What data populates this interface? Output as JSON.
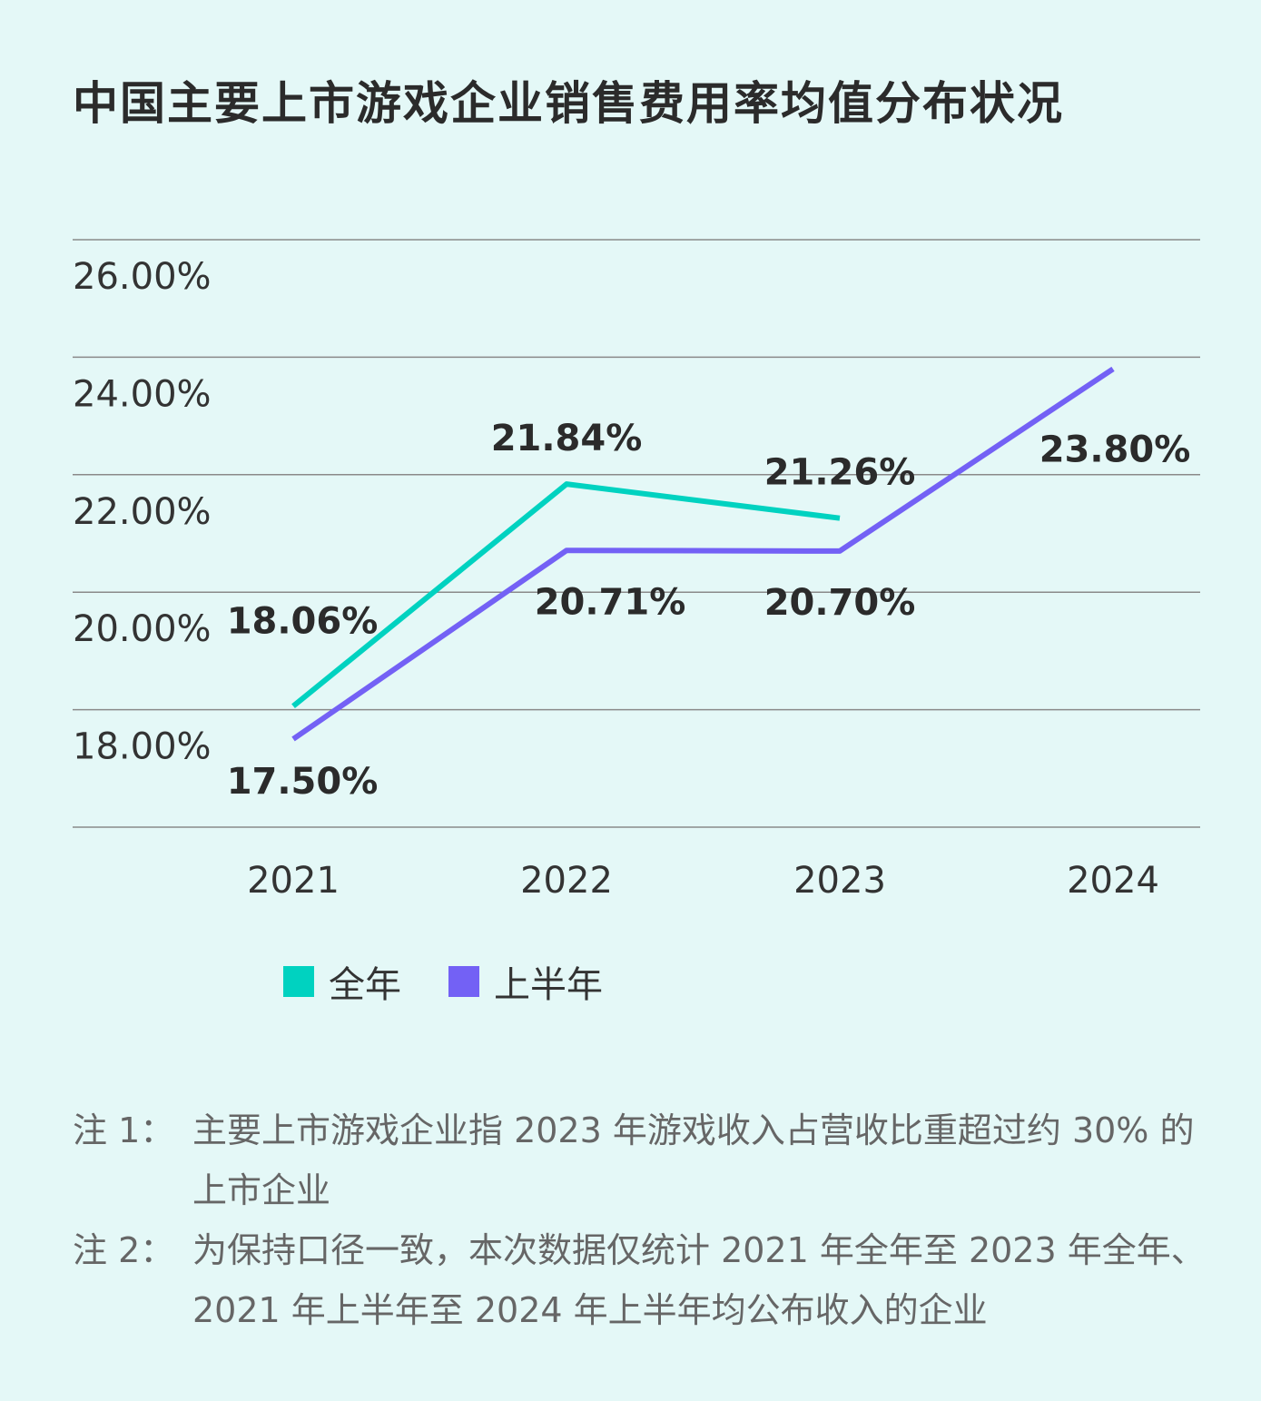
{
  "title": "中国主要上市游戏企业销售费用率均值分布状况",
  "chart_data": {
    "type": "line",
    "categories": [
      "2021",
      "2022",
      "2023",
      "2024"
    ],
    "series": [
      {
        "name": "全年",
        "color": "#00d2c0",
        "values": [
          18.06,
          21.84,
          21.26,
          null
        ],
        "labels": [
          "18.06%",
          "21.84%",
          "21.26%",
          null
        ]
      },
      {
        "name": "上半年",
        "color": "#7361f5",
        "values": [
          17.5,
          20.71,
          20.7,
          23.8
        ],
        "labels": [
          "17.50%",
          "20.71%",
          "20.70%",
          "23.80%"
        ]
      }
    ],
    "yticks": [
      "26.00%",
      "24.00%",
      "22.00%",
      "20.00%",
      "18.00%"
    ],
    "ylim": [
      16,
      26
    ],
    "grid": true,
    "legend_position": "bottom"
  },
  "notes": [
    {
      "label": "注 1：",
      "text": "主要上市游戏企业指 2023 年游戏收入占营收比重超过约 30% 的上市企业"
    },
    {
      "label": "注 2：",
      "text": "为保持口径一致，本次数据仅统计 2021 年全年至 2023 年全年、2021 年上半年至 2024 年上半年均公布收入的企业"
    }
  ]
}
